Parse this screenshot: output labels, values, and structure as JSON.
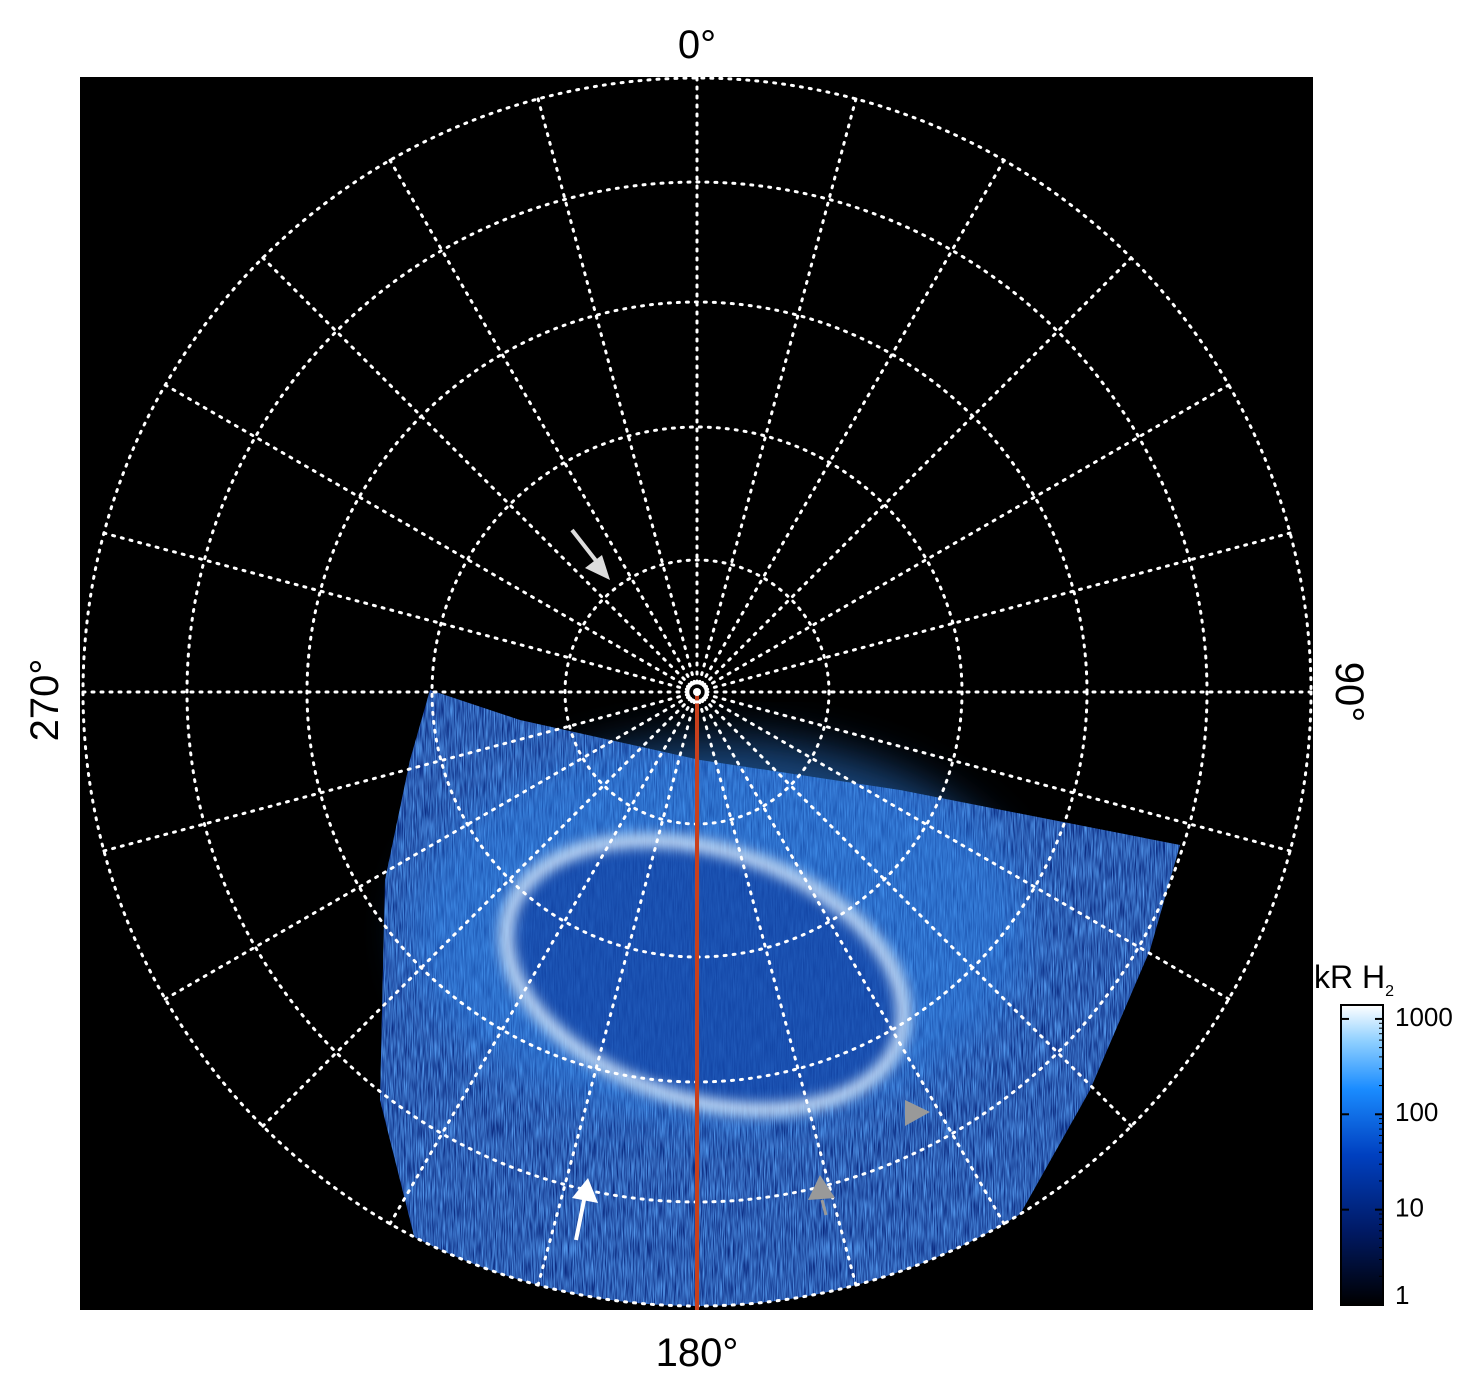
{
  "labels": {
    "top": "0°",
    "bottom": "180°",
    "left": "270°",
    "right": "90°"
  },
  "colorbar": {
    "title": "kR H",
    "title_subscript": "2",
    "lim": [
      1,
      1400
    ],
    "ticks": [
      1,
      10,
      100,
      1000
    ],
    "log": true
  }
}
